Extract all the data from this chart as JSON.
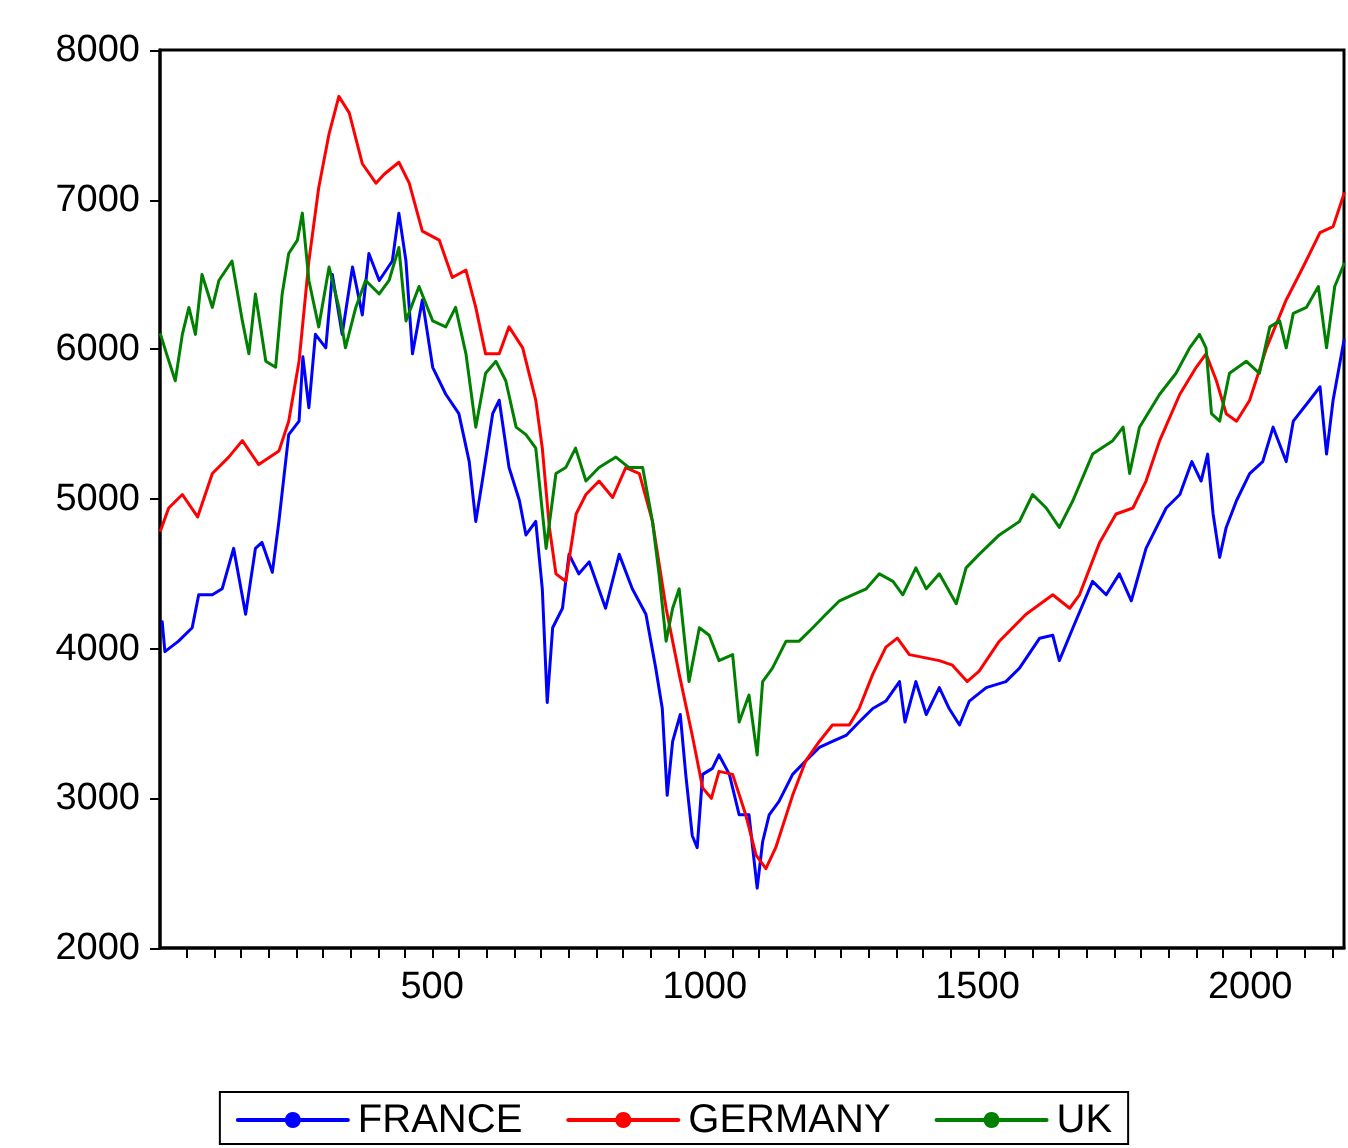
{
  "chart_data": {
    "type": "line",
    "xlim": [
      1,
      2172
    ],
    "ylim": [
      2000,
      8000
    ],
    "xticks": [
      {
        "value": 50,
        "label": null
      },
      {
        "value": 100,
        "label": null
      },
      {
        "value": 150,
        "label": null
      },
      {
        "value": 200,
        "label": null
      },
      {
        "value": 250,
        "label": null
      },
      {
        "value": 300,
        "label": null
      },
      {
        "value": 350,
        "label": null
      },
      {
        "value": 400,
        "label": null
      },
      {
        "value": 450,
        "label": null
      },
      500,
      {
        "value": 550,
        "label": null
      },
      {
        "value": 600,
        "label": null
      },
      {
        "value": 650,
        "label": null
      },
      {
        "value": 700,
        "label": null
      },
      {
        "value": 750,
        "label": null
      },
      {
        "value": 800,
        "label": null
      },
      {
        "value": 850,
        "label": null
      },
      {
        "value": 900,
        "label": null
      },
      {
        "value": 950,
        "label": null
      },
      1000,
      {
        "value": 1050,
        "label": null
      },
      {
        "value": 1100,
        "label": null
      },
      {
        "value": 1150,
        "label": null
      },
      {
        "value": 1200,
        "label": null
      },
      {
        "value": 1250,
        "label": null
      },
      {
        "value": 1300,
        "label": null
      },
      {
        "value": 1350,
        "label": null
      },
      {
        "value": 1400,
        "label": null
      },
      {
        "value": 1450,
        "label": null
      },
      1500,
      {
        "value": 1550,
        "label": null
      },
      {
        "value": 1600,
        "label": null
      },
      {
        "value": 1650,
        "label": null
      },
      {
        "value": 1700,
        "label": null
      },
      {
        "value": 1750,
        "label": null
      },
      {
        "value": 1800,
        "label": null
      },
      {
        "value": 1850,
        "label": null
      },
      {
        "value": 1900,
        "label": null
      },
      {
        "value": 1950,
        "label": null
      },
      2000,
      {
        "value": 2050,
        "label": null
      },
      {
        "value": 2100,
        "label": null
      },
      {
        "value": 2150,
        "label": null
      }
    ],
    "yticks": [
      2000,
      3000,
      4000,
      5000,
      6000,
      7000,
      8000
    ],
    "legend": "bottom",
    "marker": "none",
    "line_style": "solid",
    "series": [
      {
        "name": "FRANCE",
        "color": "#0000ff",
        "x": [
          5,
          10,
          35,
          60,
          72,
          97,
          115,
          136,
          158,
          176,
          188,
          207,
          219,
          237,
          256,
          263,
          274,
          286,
          305,
          317,
          335,
          354,
          372,
          384,
          403,
          427,
          439,
          452,
          464,
          482,
          501,
          525,
          549,
          568,
          580,
          592,
          611,
          623,
          641,
          660,
          672,
          690,
          702,
          711,
          721,
          739,
          751,
          769,
          788,
          818,
          843,
          867,
          892,
          910,
          922,
          931,
          941,
          955,
          965,
          977,
          986,
          996,
          1014,
          1026,
          1045,
          1063,
          1081,
          1096,
          1106,
          1118,
          1136,
          1161,
          1185,
          1210,
          1234,
          1259,
          1283,
          1308,
          1332,
          1357,
          1367,
          1387,
          1406,
          1430,
          1448,
          1467,
          1485,
          1516,
          1552,
          1577,
          1614,
          1638,
          1650,
          1675,
          1711,
          1736,
          1760,
          1782,
          1809,
          1846,
          1871,
          1893,
          1910,
          1922,
          1932,
          1944,
          1956,
          1975,
          1999,
          2023,
          2042,
          2066,
          2079,
          2109,
          2128,
          2140,
          2152,
          2172
        ],
        "values": [
          4180,
          3980,
          4050,
          4140,
          4360,
          4360,
          4400,
          4670,
          4230,
          4670,
          4710,
          4510,
          4850,
          5430,
          5520,
          5950,
          5610,
          6100,
          6010,
          6500,
          6100,
          6550,
          6230,
          6640,
          6460,
          6590,
          6910,
          6590,
          5970,
          6330,
          5880,
          5700,
          5570,
          5250,
          4850,
          5120,
          5570,
          5660,
          5210,
          4990,
          4760,
          4850,
          4400,
          3640,
          4140,
          4270,
          4630,
          4500,
          4580,
          4270,
          4630,
          4400,
          4230,
          3870,
          3600,
          3020,
          3380,
          3560,
          3160,
          2750,
          2670,
          3160,
          3200,
          3290,
          3160,
          2890,
          2890,
          2400,
          2710,
          2890,
          2980,
          3160,
          3250,
          3340,
          3380,
          3420,
          3510,
          3600,
          3650,
          3780,
          3510,
          3780,
          3560,
          3740,
          3600,
          3490,
          3650,
          3740,
          3780,
          3870,
          4070,
          4090,
          3920,
          4140,
          4450,
          4360,
          4500,
          4320,
          4670,
          4940,
          5030,
          5250,
          5120,
          5300,
          4900,
          4610,
          4810,
          4990,
          5170,
          5250,
          5480,
          5250,
          5520,
          5660,
          5750,
          5300,
          5660,
          6060
        ]
      },
      {
        "name": "GERMANY",
        "color": "#ff0000",
        "x": [
          2,
          17,
          42,
          70,
          97,
          127,
          152,
          182,
          219,
          237,
          256,
          274,
          292,
          311,
          329,
          348,
          372,
          397,
          412,
          439,
          458,
          482,
          513,
          537,
          562,
          580,
          598,
          623,
          641,
          666,
          690,
          702,
          715,
          727,
          745,
          764,
          782,
          806,
          831,
          855,
          880,
          904,
          929,
          953,
          977,
          996,
          1012,
          1026,
          1051,
          1075,
          1094,
          1112,
          1130,
          1161,
          1185,
          1210,
          1234,
          1265,
          1283,
          1308,
          1332,
          1353,
          1375,
          1430,
          1454,
          1481,
          1503,
          1540,
          1589,
          1638,
          1669,
          1687,
          1724,
          1754,
          1785,
          1809,
          1834,
          1871,
          1901,
          1919,
          1938,
          1956,
          1975,
          1999,
          2030,
          2066,
          2097,
          2128,
          2152,
          2172
        ],
        "values": [
          4790,
          4940,
          5030,
          4880,
          5170,
          5280,
          5390,
          5230,
          5320,
          5520,
          5920,
          6590,
          7080,
          7440,
          7690,
          7580,
          7240,
          7110,
          7170,
          7250,
          7110,
          6790,
          6730,
          6480,
          6530,
          6280,
          5970,
          5970,
          6150,
          6010,
          5660,
          5340,
          4810,
          4500,
          4450,
          4900,
          5030,
          5120,
          5010,
          5210,
          5170,
          4850,
          4270,
          3830,
          3420,
          3070,
          3000,
          3180,
          3160,
          2890,
          2620,
          2530,
          2670,
          3020,
          3250,
          3380,
          3490,
          3490,
          3600,
          3830,
          4010,
          4070,
          3960,
          3920,
          3890,
          3780,
          3850,
          4050,
          4230,
          4360,
          4270,
          4360,
          4710,
          4900,
          4940,
          5120,
          5390,
          5700,
          5880,
          5970,
          5790,
          5570,
          5520,
          5660,
          6010,
          6330,
          6550,
          6780,
          6820,
          7040
        ]
      },
      {
        "name": "UK",
        "color": "#008000",
        "x": [
          2,
          13,
          29,
          42,
          54,
          66,
          78,
          97,
          109,
          133,
          152,
          164,
          176,
          195,
          213,
          225,
          237,
          253,
          262,
          274,
          292,
          311,
          329,
          341,
          360,
          378,
          403,
          421,
          439,
          452,
          476,
          501,
          525,
          543,
          562,
          580,
          598,
          617,
          635,
          654,
          672,
          690,
          709,
          727,
          745,
          763,
          782,
          806,
          837,
          861,
          886,
          904,
          916,
          929,
          941,
          953,
          971,
          990,
          1008,
          1026,
          1051,
          1063,
          1081,
          1096,
          1106,
          1124,
          1149,
          1173,
          1198,
          1222,
          1247,
          1271,
          1296,
          1320,
          1345,
          1363,
          1387,
          1406,
          1430,
          1461,
          1479,
          1503,
          1540,
          1577,
          1601,
          1626,
          1650,
          1675,
          1711,
          1748,
          1767,
          1779,
          1797,
          1834,
          1864,
          1889,
          1907,
          1919,
          1929,
          1944,
          1962,
          1993,
          2017,
          2036,
          2054,
          2066,
          2079,
          2103,
          2125,
          2140,
          2155,
          2172
        ],
        "values": [
          6100,
          5970,
          5790,
          6100,
          6280,
          6100,
          6500,
          6280,
          6460,
          6590,
          6190,
          5970,
          6370,
          5920,
          5880,
          6370,
          6640,
          6730,
          6910,
          6460,
          6150,
          6550,
          6280,
          6010,
          6280,
          6460,
          6370,
          6460,
          6680,
          6190,
          6420,
          6190,
          6150,
          6280,
          5970,
          5480,
          5840,
          5920,
          5790,
          5480,
          5430,
          5340,
          4670,
          5170,
          5210,
          5340,
          5120,
          5210,
          5280,
          5210,
          5210,
          4850,
          4500,
          4050,
          4270,
          4400,
          3780,
          4140,
          4090,
          3920,
          3960,
          3510,
          3690,
          3290,
          3780,
          3870,
          4050,
          4050,
          4140,
          4230,
          4320,
          4360,
          4400,
          4500,
          4450,
          4360,
          4540,
          4400,
          4500,
          4300,
          4540,
          4630,
          4760,
          4850,
          5030,
          4940,
          4810,
          4990,
          5300,
          5390,
          5480,
          5170,
          5480,
          5700,
          5840,
          6010,
          6100,
          6010,
          5570,
          5520,
          5840,
          5920,
          5840,
          6150,
          6190,
          6010,
          6240,
          6280,
          6420,
          6010,
          6420,
          6570
        ]
      }
    ]
  }
}
